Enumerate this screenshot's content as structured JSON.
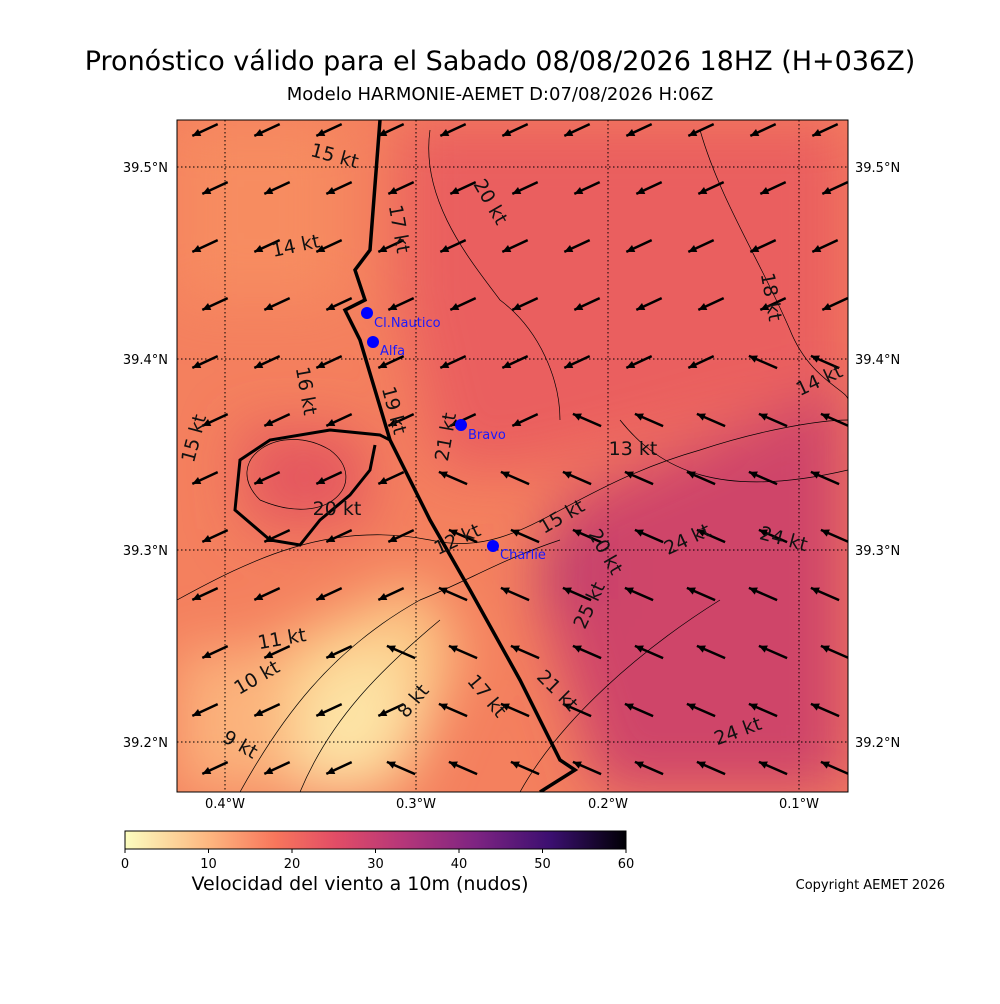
{
  "header": {
    "title": "Pronóstico válido para el Sabado 08/08/2026 18HZ (H+036Z)",
    "subtitle": "Modelo HARMONIE-AEMET D:07/08/2026 H:06Z"
  },
  "map": {
    "lat_labels": [
      "39.5°N",
      "39.4°N",
      "39.3°N",
      "39.2°N"
    ],
    "lon_labels": [
      "0.4°W",
      "0.3°W",
      "0.2°W",
      "0.1°W"
    ],
    "stations": [
      "Cl.Nautico",
      "Alfa",
      "Bravo",
      "Charlie"
    ],
    "contour_labels": [
      "15 kt",
      "20 kt",
      "17 kt",
      "14 kt",
      "18 kt",
      "16 kt",
      "19 kt",
      "21 kt",
      "15 kt",
      "20 kt",
      "13 kt",
      "14 kt",
      "12 kt",
      "15 kt",
      "20 kt",
      "25 kt",
      "24 kt",
      "24 kt",
      "11 kt",
      "10 kt",
      "9 kt",
      "8 kt",
      "17 kt",
      "21 kt",
      "24 kt"
    ]
  },
  "colorbar": {
    "ticks": [
      0,
      10,
      20,
      30,
      40,
      50,
      60
    ],
    "label": "Velocidad del viento a 10m (nudos)"
  },
  "footer": {
    "copyright": "Copyright AEMET 2026"
  }
}
